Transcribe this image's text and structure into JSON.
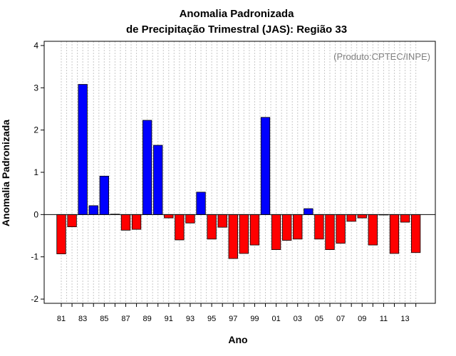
{
  "chart_data": {
    "type": "bar",
    "title_line1": "Anomalia Padronizada",
    "title_line2": "de Precipitação Trimestral (JAS): Região 33",
    "xlabel": "Ano",
    "ylabel": "Anomalia Padronizada",
    "credit": "(Produto:CPTEC/INPE)",
    "ylim": [
      -2.1,
      4.1
    ],
    "y_ticks": [
      -2,
      -1,
      0,
      1,
      2,
      3,
      4
    ],
    "grid": "vertical dotted",
    "colors": {
      "positive": "#0000ff",
      "negative": "#ff0000"
    },
    "categories": [
      "81",
      "82",
      "83",
      "84",
      "85",
      "86",
      "87",
      "88",
      "89",
      "90",
      "91",
      "92",
      "93",
      "94",
      "95",
      "96",
      "97",
      "98",
      "99",
      "00",
      "01",
      "02",
      "03",
      "04",
      "05",
      "06",
      "07",
      "08",
      "09",
      "10",
      "11",
      "12",
      "13",
      "14"
    ],
    "x_tick_labels": [
      "81",
      "",
      "83",
      "",
      "85",
      "",
      "87",
      "",
      "89",
      "",
      "91",
      "",
      "93",
      "",
      "95",
      "",
      "97",
      "",
      "99",
      "",
      "01",
      "",
      "03",
      "",
      "05",
      "",
      "07",
      "",
      "09",
      "",
      "11",
      "",
      "13",
      ""
    ],
    "values": [
      -0.93,
      -0.29,
      3.08,
      0.21,
      0.91,
      0.01,
      -0.37,
      -0.35,
      2.23,
      1.64,
      -0.08,
      -0.6,
      -0.2,
      0.53,
      -0.58,
      -0.3,
      -1.04,
      -0.92,
      -0.72,
      2.3,
      -0.83,
      -0.61,
      -0.58,
      0.14,
      -0.58,
      -0.83,
      -0.68,
      -0.16,
      -0.08,
      -0.72,
      0.0,
      -0.92,
      -0.18,
      -0.9
    ]
  }
}
